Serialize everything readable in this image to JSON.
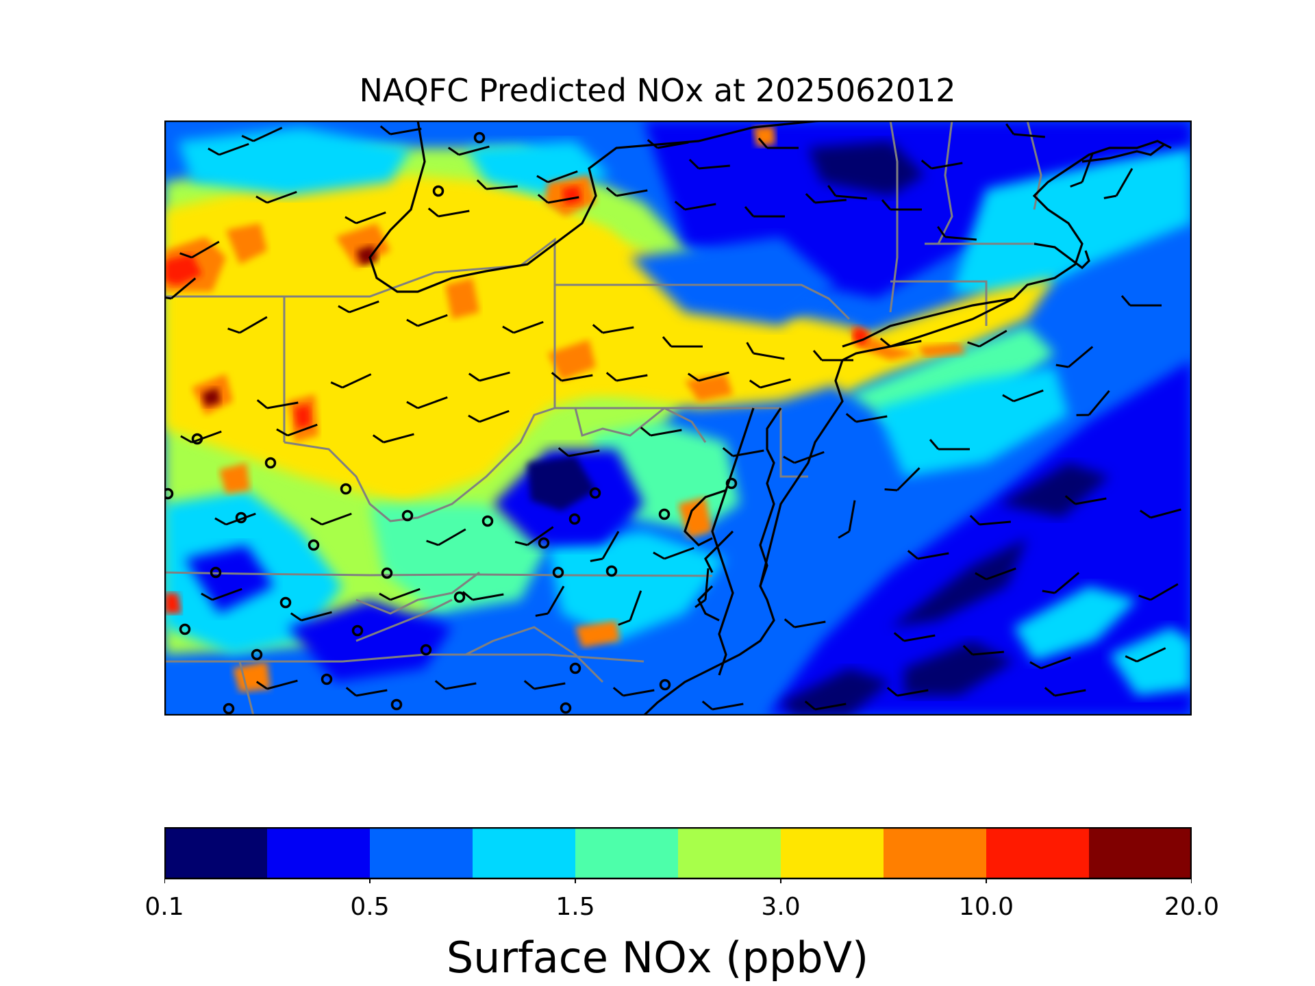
{
  "title": "NAQFC Predicted NOx at 2025062012",
  "colorbar": {
    "label": "Surface NOx (ppbV)",
    "ticks": [
      "0.1",
      "0.5",
      "1.5",
      "3.0",
      "10.0",
      "20.0"
    ],
    "colors": [
      "#00006e",
      "#0000f5",
      "#0064ff",
      "#00d8ff",
      "#4dffaa",
      "#a8ff4a",
      "#ffe600",
      "#ff7f00",
      "#ff1a00",
      "#800000"
    ]
  },
  "map": {
    "region": "Mid-Atlantic / Northeast United States",
    "layers": [
      "nox-concentration-field",
      "state-boundaries",
      "coastlines",
      "wind-barbs",
      "monitor-sites"
    ]
  }
}
